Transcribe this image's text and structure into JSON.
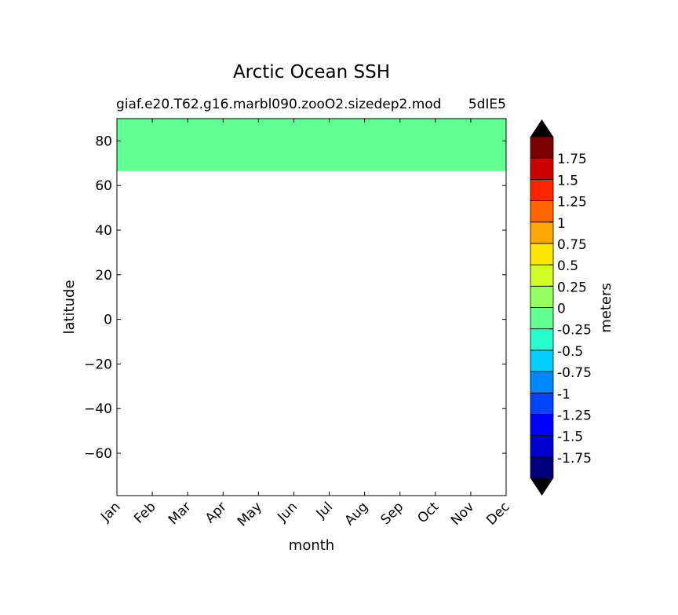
{
  "chart_data": {
    "type": "heatmap",
    "title": "Arctic Ocean SSH",
    "subtitle_left": "giaf.e20.T62.g16.marbl090.zooO2.sizedep2.mod",
    "subtitle_right": "5dIE5",
    "xlabel": "month",
    "ylabel": "latitude",
    "x_categories": [
      "Jan",
      "Feb",
      "Mar",
      "Apr",
      "May",
      "Jun",
      "Jul",
      "Aug",
      "Sep",
      "Oct",
      "Nov",
      "Dec"
    ],
    "ylim": [
      -79,
      90
    ],
    "y_ticks": [
      80,
      60,
      40,
      20,
      0,
      -20,
      -40,
      -60
    ],
    "y_tick_labels": [
      "80",
      "60",
      "40",
      "20",
      "0",
      "−20",
      "−40",
      "−60"
    ],
    "filled_region": {
      "lat_min": 66.5,
      "lat_max": 90,
      "value_bin": [
        -0.25,
        0
      ],
      "color": "#62ff94"
    },
    "colorbar": {
      "label": "meters",
      "extend": "both",
      "extend_color": "#000000",
      "levels": [
        -2,
        -1.75,
        -1.5,
        -1.25,
        -1,
        -0.75,
        -0.5,
        -0.25,
        0,
        0.25,
        0.5,
        0.75,
        1,
        1.25,
        1.5,
        1.75,
        2
      ],
      "tick_labels": [
        "-1.75",
        "-1.5",
        "-1.25",
        "-1",
        "-0.75",
        "-0.5",
        "-0.25",
        "0",
        "0.25",
        "0.5",
        "0.75",
        "1",
        "1.25",
        "1.5",
        "1.75"
      ],
      "colors": [
        "#00007f",
        "#0000cc",
        "#0000ff",
        "#0044ff",
        "#0088ff",
        "#00d0ff",
        "#27ffcf",
        "#62ff94",
        "#94ff62",
        "#cfff27",
        "#ffe600",
        "#ffa700",
        "#ff6400",
        "#ff2500",
        "#cc0000",
        "#7f0000"
      ]
    }
  }
}
